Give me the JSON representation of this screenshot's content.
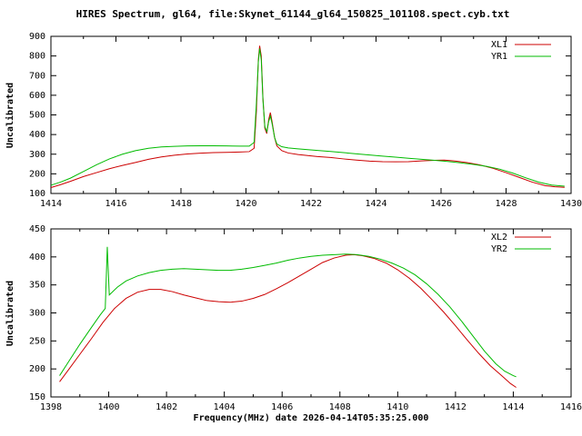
{
  "title": "HIRES Spectrum, gl64, file:Skynet_61144_gl64_150825_101108.spect.cyb.txt",
  "x_axis_label": "Frequency(MHz) date 2026-04-14T05:35:25.000",
  "colors": {
    "series_red": "#cc0000",
    "series_green": "#00bb00",
    "axis": "#000000",
    "background": "#ffffff"
  },
  "chart_data": [
    {
      "type": "line",
      "title": "",
      "xlabel": "",
      "ylabel": "Uncalibrated",
      "xlim": [
        1414,
        1430
      ],
      "ylim": [
        100,
        900
      ],
      "xticks": [
        1414,
        1416,
        1418,
        1420,
        1422,
        1424,
        1426,
        1428,
        1430
      ],
      "yticks": [
        100,
        200,
        300,
        400,
        500,
        600,
        700,
        800,
        900
      ],
      "grid": false,
      "legend_position": "top-right",
      "series": [
        {
          "name": "XL1",
          "color": "#cc0000",
          "points": [
            [
              1414.0,
              130
            ],
            [
              1414.3,
              145
            ],
            [
              1414.6,
              162
            ],
            [
              1415.0,
              186
            ],
            [
              1415.4,
              206
            ],
            [
              1415.8,
              226
            ],
            [
              1416.2,
              243
            ],
            [
              1416.6,
              258
            ],
            [
              1417.0,
              274
            ],
            [
              1417.4,
              286
            ],
            [
              1417.8,
              295
            ],
            [
              1418.2,
              301
            ],
            [
              1418.6,
              305
            ],
            [
              1419.0,
              308
            ],
            [
              1419.4,
              309
            ],
            [
              1419.8,
              311
            ],
            [
              1420.1,
              313
            ],
            [
              1420.25,
              330
            ],
            [
              1420.32,
              520
            ],
            [
              1420.38,
              780
            ],
            [
              1420.42,
              852
            ],
            [
              1420.47,
              800
            ],
            [
              1420.52,
              590
            ],
            [
              1420.58,
              432
            ],
            [
              1420.64,
              405
            ],
            [
              1420.7,
              478
            ],
            [
              1420.75,
              512
            ],
            [
              1420.8,
              468
            ],
            [
              1420.88,
              385
            ],
            [
              1420.95,
              342
            ],
            [
              1421.1,
              318
            ],
            [
              1421.3,
              306
            ],
            [
              1421.6,
              298
            ],
            [
              1421.9,
              293
            ],
            [
              1422.2,
              288
            ],
            [
              1422.6,
              283
            ],
            [
              1423.0,
              276
            ],
            [
              1423.4,
              270
            ],
            [
              1423.8,
              265
            ],
            [
              1424.2,
              262
            ],
            [
              1424.6,
              261
            ],
            [
              1425.0,
              262
            ],
            [
              1425.4,
              266
            ],
            [
              1425.8,
              269
            ],
            [
              1426.1,
              270
            ],
            [
              1426.4,
              266
            ],
            [
              1426.8,
              257
            ],
            [
              1427.2,
              245
            ],
            [
              1427.6,
              228
            ],
            [
              1428.0,
              206
            ],
            [
              1428.4,
              182
            ],
            [
              1428.8,
              158
            ],
            [
              1429.2,
              140
            ],
            [
              1429.5,
              134
            ],
            [
              1429.8,
              131
            ]
          ]
        },
        {
          "name": "YR1",
          "color": "#00bb00",
          "points": [
            [
              1414.0,
              142
            ],
            [
              1414.3,
              158
            ],
            [
              1414.6,
              178
            ],
            [
              1415.0,
              212
            ],
            [
              1415.4,
              246
            ],
            [
              1415.8,
              276
            ],
            [
              1416.2,
              300
            ],
            [
              1416.6,
              318
            ],
            [
              1417.0,
              330
            ],
            [
              1417.4,
              337
            ],
            [
              1417.8,
              340
            ],
            [
              1418.2,
              342
            ],
            [
              1418.6,
              343
            ],
            [
              1419.0,
              343
            ],
            [
              1419.4,
              342
            ],
            [
              1419.8,
              341
            ],
            [
              1420.1,
              341
            ],
            [
              1420.25,
              360
            ],
            [
              1420.32,
              560
            ],
            [
              1420.38,
              770
            ],
            [
              1420.42,
              838
            ],
            [
              1420.47,
              780
            ],
            [
              1420.52,
              580
            ],
            [
              1420.58,
              440
            ],
            [
              1420.64,
              415
            ],
            [
              1420.7,
              468
            ],
            [
              1420.75,
              494
            ],
            [
              1420.8,
              458
            ],
            [
              1420.88,
              385
            ],
            [
              1420.95,
              352
            ],
            [
              1421.1,
              338
            ],
            [
              1421.3,
              332
            ],
            [
              1421.6,
              327
            ],
            [
              1421.9,
              323
            ],
            [
              1422.2,
              319
            ],
            [
              1422.6,
              314
            ],
            [
              1423.0,
              308
            ],
            [
              1423.4,
              302
            ],
            [
              1423.8,
              296
            ],
            [
              1424.2,
              290
            ],
            [
              1424.6,
              285
            ],
            [
              1425.0,
              279
            ],
            [
              1425.4,
              274
            ],
            [
              1425.8,
              269
            ],
            [
              1426.2,
              263
            ],
            [
              1426.6,
              256
            ],
            [
              1427.0,
              248
            ],
            [
              1427.4,
              238
            ],
            [
              1427.8,
              224
            ],
            [
              1428.2,
              204
            ],
            [
              1428.6,
              180
            ],
            [
              1429.0,
              158
            ],
            [
              1429.4,
              143
            ],
            [
              1429.8,
              137
            ]
          ]
        }
      ]
    },
    {
      "type": "line",
      "title": "",
      "xlabel": "Frequency(MHz) date 2026-04-14T05:35:25.000",
      "ylabel": "Uncalibrated",
      "xlim": [
        1398,
        1416
      ],
      "ylim": [
        150,
        450
      ],
      "xticks": [
        1398,
        1400,
        1402,
        1404,
        1406,
        1408,
        1410,
        1412,
        1414,
        1416
      ],
      "yticks": [
        150,
        200,
        250,
        300,
        350,
        400,
        450
      ],
      "grid": false,
      "legend_position": "top-right",
      "series": [
        {
          "name": "XL2",
          "color": "#cc0000",
          "points": [
            [
              1398.3,
              177
            ],
            [
              1398.6,
              198
            ],
            [
              1399.0,
              226
            ],
            [
              1399.4,
              254
            ],
            [
              1399.8,
              283
            ],
            [
              1400.2,
              308
            ],
            [
              1400.6,
              326
            ],
            [
              1401.0,
              337
            ],
            [
              1401.4,
              342
            ],
            [
              1401.8,
              342
            ],
            [
              1402.2,
              338
            ],
            [
              1402.6,
              332
            ],
            [
              1403.0,
              327
            ],
            [
              1403.4,
              322
            ],
            [
              1403.8,
              320
            ],
            [
              1404.2,
              319
            ],
            [
              1404.6,
              321
            ],
            [
              1405.0,
              326
            ],
            [
              1405.4,
              333
            ],
            [
              1405.8,
              343
            ],
            [
              1406.2,
              354
            ],
            [
              1406.6,
              366
            ],
            [
              1407.0,
              378
            ],
            [
              1407.4,
              390
            ],
            [
              1407.8,
              398
            ],
            [
              1408.2,
              403
            ],
            [
              1408.5,
              404
            ],
            [
              1408.8,
              402
            ],
            [
              1409.2,
              397
            ],
            [
              1409.6,
              389
            ],
            [
              1410.0,
              377
            ],
            [
              1410.4,
              362
            ],
            [
              1410.8,
              344
            ],
            [
              1411.2,
              323
            ],
            [
              1411.6,
              301
            ],
            [
              1412.0,
              277
            ],
            [
              1412.4,
              252
            ],
            [
              1412.8,
              228
            ],
            [
              1413.2,
              206
            ],
            [
              1413.6,
              188
            ],
            [
              1413.9,
              174
            ],
            [
              1414.1,
              167
            ]
          ]
        },
        {
          "name": "YR2",
          "color": "#00bb00",
          "points": [
            [
              1398.3,
              188
            ],
            [
              1398.6,
              212
            ],
            [
              1399.0,
              244
            ],
            [
              1399.4,
              274
            ],
            [
              1399.7,
              296
            ],
            [
              1399.88,
              308
            ],
            [
              1399.95,
              418
            ],
            [
              1400.02,
              332
            ],
            [
              1400.3,
              346
            ],
            [
              1400.6,
              357
            ],
            [
              1401.0,
              366
            ],
            [
              1401.4,
              372
            ],
            [
              1401.8,
              376
            ],
            [
              1402.2,
              378
            ],
            [
              1402.6,
              379
            ],
            [
              1403.0,
              378
            ],
            [
              1403.4,
              377
            ],
            [
              1403.8,
              376
            ],
            [
              1404.2,
              376
            ],
            [
              1404.6,
              378
            ],
            [
              1405.0,
              381
            ],
            [
              1405.4,
              385
            ],
            [
              1405.8,
              389
            ],
            [
              1406.2,
              394
            ],
            [
              1406.6,
              398
            ],
            [
              1407.0,
              401
            ],
            [
              1407.4,
              403
            ],
            [
              1407.8,
              404
            ],
            [
              1408.2,
              405
            ],
            [
              1408.6,
              404
            ],
            [
              1409.0,
              401
            ],
            [
              1409.4,
              396
            ],
            [
              1409.8,
              389
            ],
            [
              1410.2,
              380
            ],
            [
              1410.6,
              368
            ],
            [
              1411.0,
              352
            ],
            [
              1411.4,
              333
            ],
            [
              1411.8,
              311
            ],
            [
              1412.2,
              286
            ],
            [
              1412.6,
              259
            ],
            [
              1413.0,
              232
            ],
            [
              1413.4,
              209
            ],
            [
              1413.7,
              196
            ],
            [
              1414.0,
              188
            ],
            [
              1414.1,
              186
            ]
          ]
        }
      ]
    }
  ]
}
